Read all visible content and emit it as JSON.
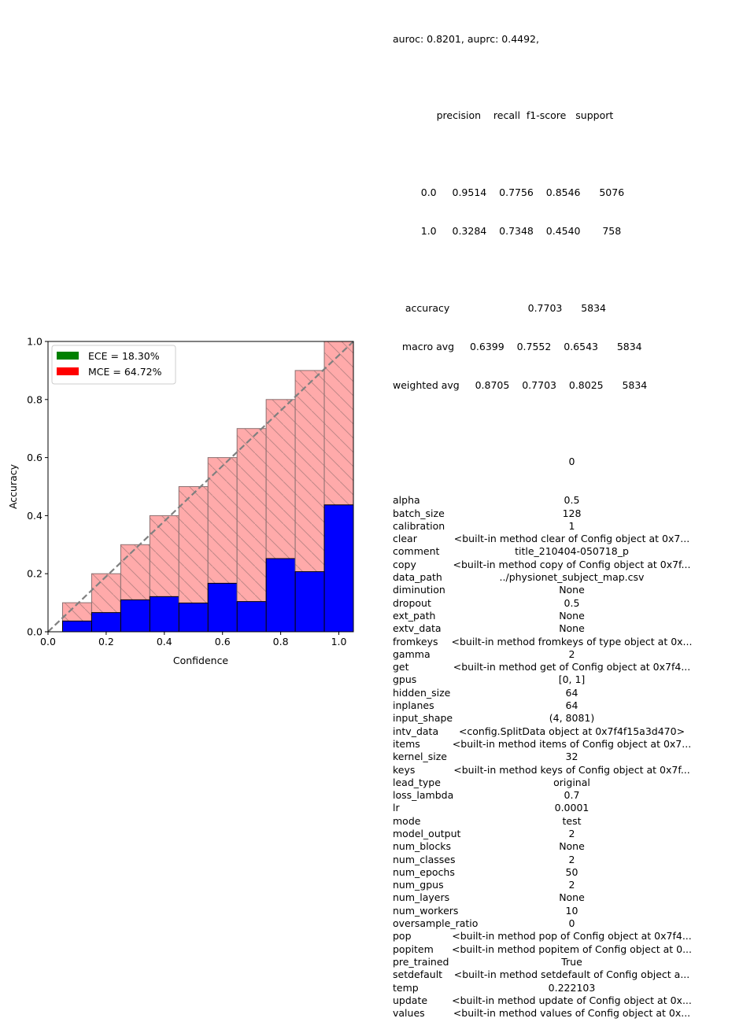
{
  "chart_data": {
    "type": "bar",
    "title": "",
    "xlabel": "Confidence",
    "ylabel": "Accuracy",
    "xlim": [
      0.0,
      1.05
    ],
    "ylim": [
      0.0,
      1.0
    ],
    "xticks": [
      "0.0",
      "0.2",
      "0.4",
      "0.6",
      "0.8",
      "1.0"
    ],
    "yticks": [
      "0.0",
      "0.2",
      "0.4",
      "0.6",
      "0.8",
      "1.0"
    ],
    "bin_centers": [
      0.1,
      0.2,
      0.3,
      0.4,
      0.5,
      0.6,
      0.7,
      0.8,
      0.9,
      1.0
    ],
    "bin_width": 0.1,
    "series": [
      {
        "name": "Outputs",
        "color": "#0000ff",
        "values": [
          0.037,
          0.066,
          0.11,
          0.121,
          0.099,
          0.167,
          0.104,
          0.252,
          0.207,
          0.437
        ]
      },
      {
        "name": "Gap",
        "color": "#ffaaaa",
        "values": [
          0.1,
          0.2,
          0.3,
          0.4,
          0.5,
          0.6,
          0.7,
          0.8,
          0.9,
          1.0
        ]
      }
    ],
    "diagonal": {
      "from": [
        0,
        0
      ],
      "to": [
        1.05,
        1.05
      ],
      "color": "#808080",
      "style": "dashed"
    },
    "legend": {
      "placement": "top-left",
      "entries": [
        {
          "label": "ECE = 18.30%",
          "color": "#008000"
        },
        {
          "label": "MCE = 64.72%",
          "color": "#ff0000"
        }
      ]
    }
  },
  "report": {
    "header": "auroc: 0.8201, auprc: 0.4492,",
    "column_header": "              precision    recall  f1-score   support",
    "class_rows": [
      "         0.0     0.9514    0.7756    0.8546      5076",
      "         1.0     0.3284    0.7348    0.4540       758"
    ],
    "summary_rows": [
      "    accuracy                         0.7703      5834",
      "   macro avg     0.6399    0.7552    0.6543      5834",
      "weighted avg     0.8705    0.7703    0.8025      5834"
    ]
  },
  "config": {
    "column_header": "0",
    "rows": [
      {
        "key": "alpha",
        "value": "0.5"
      },
      {
        "key": "batch_size",
        "value": "128"
      },
      {
        "key": "calibration",
        "value": "1"
      },
      {
        "key": "clear",
        "value": "<built-in method clear of Config object at 0x7..."
      },
      {
        "key": "comment",
        "value": "title_210404-050718_p"
      },
      {
        "key": "copy",
        "value": "<built-in method copy of Config object at 0x7f..."
      },
      {
        "key": "data_path",
        "value": "../physionet_subject_map.csv"
      },
      {
        "key": "diminution",
        "value": "None"
      },
      {
        "key": "dropout",
        "value": "0.5"
      },
      {
        "key": "ext_path",
        "value": "None"
      },
      {
        "key": "extv_data",
        "value": "None"
      },
      {
        "key": "fromkeys",
        "value": "<built-in method fromkeys of type object at 0x..."
      },
      {
        "key": "gamma",
        "value": "2"
      },
      {
        "key": "get",
        "value": "<built-in method get of Config object at 0x7f4..."
      },
      {
        "key": "gpus",
        "value": "[0, 1]"
      },
      {
        "key": "hidden_size",
        "value": "64"
      },
      {
        "key": "inplanes",
        "value": "64"
      },
      {
        "key": "input_shape",
        "value": "(4, 8081)"
      },
      {
        "key": "intv_data",
        "value": "<config.SplitData object at 0x7f4f15a3d470>"
      },
      {
        "key": "items",
        "value": "<built-in method items of Config object at 0x7..."
      },
      {
        "key": "kernel_size",
        "value": "32"
      },
      {
        "key": "keys",
        "value": "<built-in method keys of Config object at 0x7f..."
      },
      {
        "key": "lead_type",
        "value": "original"
      },
      {
        "key": "loss_lambda",
        "value": "0.7"
      },
      {
        "key": "lr",
        "value": "0.0001"
      },
      {
        "key": "mode",
        "value": "test"
      },
      {
        "key": "model_output",
        "value": "2"
      },
      {
        "key": "num_blocks",
        "value": "None"
      },
      {
        "key": "num_classes",
        "value": "2"
      },
      {
        "key": "num_epochs",
        "value": "50"
      },
      {
        "key": "num_gpus",
        "value": "2"
      },
      {
        "key": "num_layers",
        "value": "None"
      },
      {
        "key": "num_workers",
        "value": "10"
      },
      {
        "key": "oversample_ratio",
        "value": "0"
      },
      {
        "key": "pop",
        "value": "<built-in method pop of Config object at 0x7f4..."
      },
      {
        "key": "popitem",
        "value": "<built-in method popitem of Config object at 0..."
      },
      {
        "key": "pre_trained",
        "value": "True"
      },
      {
        "key": "setdefault",
        "value": "<built-in method setdefault of Config object a..."
      },
      {
        "key": "temp",
        "value": "0.222103"
      },
      {
        "key": "update",
        "value": "<built-in method update of Config object at 0x..."
      },
      {
        "key": "values",
        "value": "<built-in method values of Config object at 0x..."
      }
    ]
  }
}
